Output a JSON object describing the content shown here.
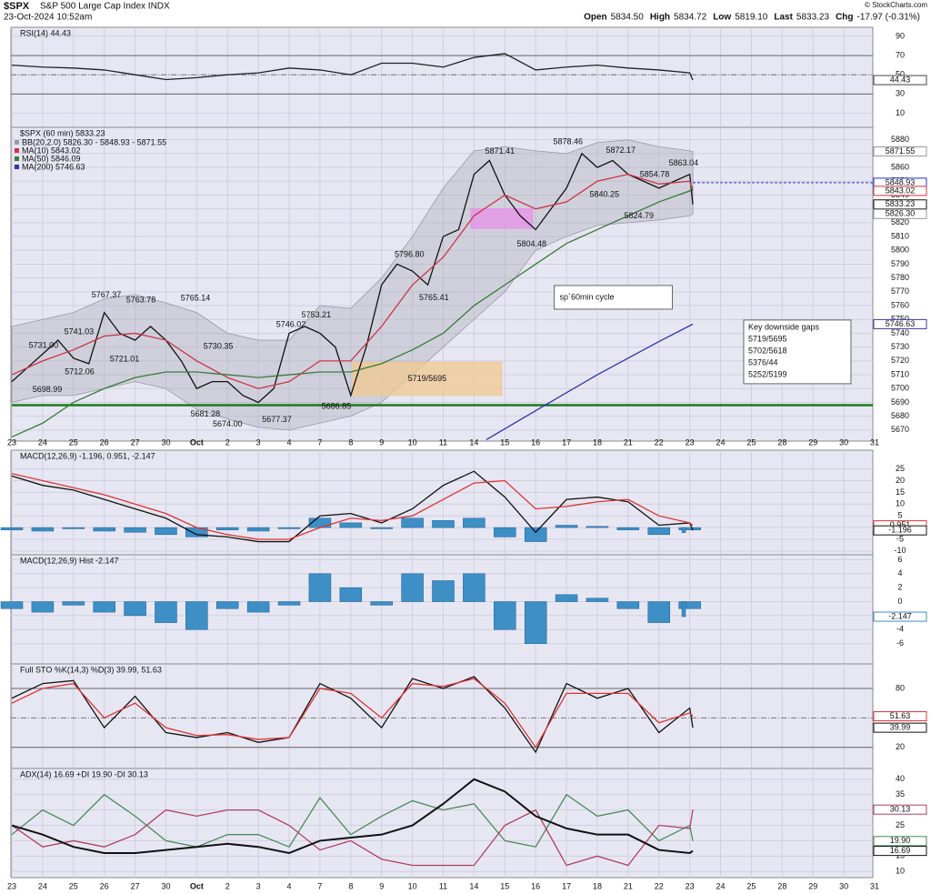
{
  "header": {
    "symbol": "$SPX",
    "name": "S&P 500 Large Cap Index INDX",
    "date": "23-Oct-2024 10:52am",
    "credit": "© StockCharts.com",
    "quote": [
      {
        "label": "Open",
        "value": "5834.50"
      },
      {
        "label": "High",
        "value": "5834.72"
      },
      {
        "label": "Low",
        "value": "5819.10"
      },
      {
        "label": "Last",
        "value": "5833.23"
      },
      {
        "label": "Chg",
        "value": "-17.97 (-0.31%)"
      }
    ]
  },
  "date_axis": {
    "labels": [
      "23",
      "24",
      "25",
      "26",
      "27",
      "30",
      "Oct",
      "2",
      "3",
      "4",
      "7",
      "8",
      "9",
      "10",
      "11",
      "14",
      "15",
      "16",
      "17",
      "18",
      "21",
      "22",
      "23",
      "24",
      "25",
      "28",
      "29",
      "30",
      "31"
    ]
  },
  "chart_data": [
    {
      "type": "line",
      "title": "RSI(14) 44.43",
      "ylim": [
        -4.7,
        99.4
      ],
      "yticks": [
        90,
        70,
        50,
        30,
        10
      ],
      "ref_lines": [
        70,
        30
      ],
      "dashed_lines": [
        50
      ],
      "x": [
        0,
        1,
        2,
        3,
        4,
        5,
        6,
        7,
        8,
        9,
        10,
        11,
        12,
        13,
        14,
        15,
        16,
        17,
        18,
        19,
        20,
        21,
        22,
        22.1
      ],
      "series": [
        {
          "color": "#222222",
          "values": [
            60,
            58,
            57,
            55,
            50,
            45,
            47,
            50,
            52,
            57,
            55,
            50,
            62,
            62,
            58,
            68,
            72,
            55,
            58,
            60,
            57,
            55,
            52,
            44.43
          ]
        }
      ],
      "last_labels": [
        {
          "value": 44.43,
          "color": "#444444"
        }
      ]
    },
    {
      "type": "line",
      "title": "$SPX (60 min) 5833.23",
      "ylim": [
        5662,
        5889
      ],
      "yticks": [
        5880,
        5870,
        5860,
        5850,
        5840,
        5830,
        5820,
        5810,
        5800,
        5790,
        5780,
        5770,
        5760,
        5750,
        5740,
        5730,
        5720,
        5710,
        5700,
        5690,
        5680,
        5670
      ],
      "x": [
        0,
        0.5,
        1,
        1.5,
        2,
        2.5,
        3,
        3.5,
        4,
        4.5,
        5,
        5.5,
        6,
        6.5,
        7,
        7.5,
        8,
        8.5,
        9,
        9.5,
        10,
        10.5,
        11,
        11.5,
        12,
        12.5,
        13,
        13.5,
        14,
        14.5,
        15,
        15.5,
        16,
        16.5,
        17,
        17.5,
        18,
        18.5,
        19,
        19.5,
        20,
        20.5,
        21,
        21.5,
        22,
        22.1
      ],
      "bands": {
        "name": "BB(20,2.0) 5826.30 - 5848.93 - 5871.55",
        "color": "#9a9aa8",
        "x": [
          0,
          1,
          2,
          3,
          4,
          5,
          6,
          7,
          8,
          9,
          10,
          11,
          12,
          13,
          14,
          15,
          16,
          17,
          18,
          19,
          20,
          21,
          22,
          22.1
        ],
        "upper": [
          5745,
          5750,
          5755,
          5765,
          5768,
          5762,
          5755,
          5740,
          5735,
          5735,
          5760,
          5758,
          5780,
          5810,
          5845,
          5872,
          5875,
          5872,
          5870,
          5878,
          5880,
          5875,
          5872,
          5871.55
        ],
        "lower": [
          5690,
          5695,
          5695,
          5700,
          5705,
          5700,
          5685,
          5678,
          5672,
          5670,
          5675,
          5680,
          5690,
          5710,
          5730,
          5750,
          5770,
          5800,
          5810,
          5818,
          5820,
          5822,
          5825,
          5826.3
        ]
      },
      "series": [
        {
          "name": "$SPX (60 min) 5833.23",
          "color": "#111111",
          "values": [
            5705,
            5715,
            5725,
            5735,
            5722,
            5718,
            5755,
            5740,
            5735,
            5745,
            5735,
            5720,
            5700,
            5705,
            5705,
            5695,
            5690,
            5700,
            5740,
            5745,
            5740,
            5730,
            5695,
            5730,
            5775,
            5790,
            5785,
            5775,
            5810,
            5815,
            5855,
            5865,
            5840,
            5825,
            5815,
            5830,
            5845,
            5870,
            5860,
            5865,
            5855,
            5850,
            5845,
            5850,
            5855,
            5833.23
          ]
        },
        {
          "name": "MA(10) 5843.02",
          "color": "#cc3344",
          "x": [
            0,
            1,
            2,
            3,
            4,
            5,
            6,
            7,
            8,
            9,
            10,
            11,
            12,
            13,
            14,
            15,
            16,
            17,
            18,
            19,
            20,
            21,
            22,
            22.1
          ],
          "values": [
            5710,
            5720,
            5728,
            5738,
            5740,
            5735,
            5720,
            5708,
            5700,
            5705,
            5720,
            5720,
            5745,
            5775,
            5795,
            5825,
            5840,
            5830,
            5835,
            5850,
            5855,
            5848,
            5850,
            5843.02
          ]
        },
        {
          "name": "MA(50) 5846.09",
          "color": "#3a7a3a",
          "x": [
            0,
            1,
            2,
            3,
            4,
            5,
            6,
            7,
            8,
            9,
            10,
            11,
            12,
            13,
            14,
            15,
            16,
            17,
            18,
            19,
            20,
            21,
            22,
            22.1
          ],
          "values": [
            5665,
            5675,
            5690,
            5700,
            5708,
            5712,
            5712,
            5710,
            5708,
            5710,
            5712,
            5712,
            5718,
            5728,
            5740,
            5760,
            5775,
            5790,
            5805,
            5815,
            5825,
            5835,
            5843,
            5846.09
          ]
        },
        {
          "name": "MA(200) 5746.63",
          "color": "#3333aa",
          "x": [
            15.4,
            17,
            19,
            21,
            22.1
          ],
          "values": [
            5663,
            5684,
            5710,
            5734,
            5746.63
          ]
        }
      ],
      "annotations": [
        {
          "x": 1.03,
          "value": 5731,
          "label": "5731.00"
        },
        {
          "x": 2.18,
          "value": 5741.03
        },
        {
          "x": 2.2,
          "value": 5712.06
        },
        {
          "x": 1.15,
          "value": 5698.99
        },
        {
          "x": 3.07,
          "value": 5767.37
        },
        {
          "x": 3.66,
          "value": 5721.01
        },
        {
          "x": 4.19,
          "value": 5763.78
        },
        {
          "x": 5.96,
          "value": 5765.14
        },
        {
          "x": 6.7,
          "value": 5730.35
        },
        {
          "x": 6.28,
          "value": 5681.28
        },
        {
          "x": 7,
          "value": 5674,
          "label": "5674.00"
        },
        {
          "x": 8.6,
          "value": 5677.37
        },
        {
          "x": 9.06,
          "value": 5746.02
        },
        {
          "x": 9.88,
          "value": 5753.21
        },
        {
          "x": 10.53,
          "value": 5686.85
        },
        {
          "x": 12.9,
          "value": 5796.8,
          "label": "5796.80"
        },
        {
          "x": 13.7,
          "value": 5765.41
        },
        {
          "x": 15.84,
          "value": 5871.41
        },
        {
          "x": 16.87,
          "value": 5804.48
        },
        {
          "x": 18.05,
          "value": 5878.46
        },
        {
          "x": 19.23,
          "value": 5840.25
        },
        {
          "x": 19.76,
          "value": 5872.17
        },
        {
          "x": 20.86,
          "value": 5854.78
        },
        {
          "x": 20.35,
          "value": 5824.79
        },
        {
          "x": 21.8,
          "value": 5863.04
        }
      ],
      "gaps": [
        {
          "label": "5719/5695",
          "top": 5719,
          "bottom": 5695,
          "x": [
            11.06,
            15.9
          ],
          "color": "#f0c890"
        },
        {
          "top": 5830,
          "bottom": 5816,
          "x": [
            14.9,
            16.9
          ],
          "color": "#e890e8"
        }
      ],
      "hlines": [
        {
          "value": 5688,
          "color": "#1a7a1a",
          "from": 0
        },
        {
          "value": 5848.93,
          "color": "#2233cc",
          "from": 22.1
        }
      ],
      "last_labels": [
        {
          "value": 5871.55,
          "color": "#999999"
        },
        {
          "value": 5848.93,
          "color": "#2233cc"
        },
        {
          "value": 5843.02,
          "color": "#cc3344"
        },
        {
          "value": 5833.23,
          "color": "#111111"
        },
        {
          "value": 5826.3,
          "label": "5826.30",
          "color": "#999999"
        },
        {
          "value": 5746.63,
          "color": "#3333aa"
        }
      ],
      "notes": [
        {
          "text": "sp`60min cycle",
          "x": 17.6,
          "value": 5766
        },
        {
          "lines": [
            "Key downside gaps",
            "5719/5695",
            "5702/5618",
            "5376/44",
            "5252/5199"
          ],
          "x": 23.75,
          "value": 5743
        }
      ]
    },
    {
      "type": "line",
      "title": "MACD(12,26,9) -1.196, 0.951, -2.147",
      "ylim": [
        -11.6,
        33
      ],
      "yticks": [
        25,
        20,
        15,
        10,
        5,
        0,
        -5,
        -10
      ],
      "x": [
        0,
        1,
        2,
        3,
        4,
        5,
        6,
        7,
        8,
        9,
        10,
        11,
        12,
        13,
        14,
        15,
        16,
        17,
        18,
        19,
        20,
        21,
        22,
        22.1
      ],
      "series": [
        {
          "type": "bar",
          "color": "#3d8fc6",
          "values": [
            -1,
            -1.5,
            -0.5,
            -1.5,
            -2,
            -3,
            -4,
            -1,
            -1.5,
            -0.5,
            4,
            2,
            -0.5,
            4,
            3,
            4,
            -4,
            -6,
            1,
            0.5,
            -1,
            -3,
            -1,
            -2.147
          ]
        },
        {
          "color": "#111111",
          "values": [
            22,
            18,
            16,
            12,
            8,
            4,
            -3,
            -4,
            -6,
            -6,
            5,
            6,
            2,
            8,
            18,
            24,
            13,
            -2,
            12,
            13,
            11,
            1,
            2,
            -1.196
          ]
        },
        {
          "color": "#dd3333",
          "values": [
            23,
            20,
            17,
            14,
            10,
            6,
            0,
            -3,
            -5,
            -5,
            0,
            4,
            3,
            5,
            12,
            19,
            20,
            8,
            9,
            11,
            12,
            5,
            2,
            0.951
          ]
        }
      ],
      "last_labels": [
        {
          "value": 0.951,
          "color": "#dd3333"
        },
        {
          "value": -1.196,
          "color": "#111111"
        }
      ]
    },
    {
      "type": "bar",
      "title": "MACD(12,26,9) Hist -2.147",
      "ylim": [
        -8.9,
        6.7
      ],
      "yticks": [
        6,
        4,
        2,
        0,
        -2,
        -4,
        -6
      ],
      "x": [
        0,
        1,
        2,
        3,
        4,
        5,
        6,
        7,
        8,
        9,
        10,
        11,
        12,
        13,
        14,
        15,
        16,
        17,
        18,
        19,
        20,
        21,
        22,
        22.1
      ],
      "series": [
        {
          "type": "bar",
          "color": "#3d8fc6",
          "values": [
            -1,
            -1.5,
            -0.5,
            -1.5,
            -2,
            -3,
            -4,
            -1,
            -1.5,
            -0.5,
            4,
            2,
            -0.5,
            4,
            3,
            4,
            -4,
            -6,
            1,
            0.5,
            -1,
            -3,
            -1,
            -2.147
          ]
        }
      ],
      "last_labels": [
        {
          "value": -2.147,
          "color": "#3d8fc6"
        }
      ]
    },
    {
      "type": "line",
      "title": "Full STO %K(14,3) %D(3) 39.99, 51.63",
      "ylim": [
        -1.6,
        105
      ],
      "yticks": [
        80,
        20
      ],
      "ref_lines": [
        80,
        20
      ],
      "dashed_lines": [
        50
      ],
      "x": [
        0,
        1,
        2,
        3,
        4,
        5,
        6,
        7,
        8,
        9,
        10,
        11,
        12,
        13,
        14,
        15,
        16,
        17,
        18,
        19,
        20,
        21,
        22,
        22.1
      ],
      "series": [
        {
          "color": "#111111",
          "values": [
            70,
            85,
            88,
            40,
            72,
            35,
            30,
            35,
            25,
            30,
            85,
            70,
            40,
            90,
            80,
            92,
            60,
            15,
            85,
            70,
            80,
            35,
            60,
            39.99
          ]
        },
        {
          "color": "#dd3333",
          "values": [
            65,
            80,
            85,
            50,
            65,
            40,
            32,
            33,
            28,
            30,
            80,
            75,
            50,
            85,
            82,
            90,
            65,
            20,
            75,
            75,
            75,
            45,
            55,
            51.63
          ]
        }
      ],
      "last_labels": [
        {
          "value": 51.63,
          "color": "#dd3333"
        },
        {
          "value": 39.99,
          "color": "#111111"
        }
      ]
    },
    {
      "type": "line",
      "title": "ADX(14) 16.69 +DI 19.90 -DI 30.13",
      "ylim": [
        8,
        43.5
      ],
      "yticks": [
        40,
        35,
        30,
        25,
        20,
        15,
        10
      ],
      "x": [
        0,
        1,
        2,
        3,
        4,
        5,
        6,
        7,
        8,
        9,
        10,
        11,
        12,
        13,
        14,
        15,
        16,
        17,
        18,
        19,
        20,
        21,
        22,
        22.1
      ],
      "series": [
        {
          "color": "#4a8a5a",
          "values": [
            22,
            30,
            25,
            35,
            28,
            20,
            18,
            22,
            22,
            18,
            34,
            22,
            28,
            33,
            30,
            32,
            20,
            18,
            35,
            28,
            30,
            20,
            25,
            19.9
          ]
        },
        {
          "color": "#b04060",
          "values": [
            25,
            18,
            20,
            18,
            22,
            30,
            28,
            30,
            30,
            25,
            17,
            20,
            14,
            12,
            12,
            12,
            25,
            30,
            12,
            15,
            12,
            25,
            24,
            30.13
          ]
        },
        {
          "color": "#111111",
          "width": 2,
          "values": [
            25,
            22,
            18,
            16,
            16,
            17,
            18,
            19,
            18,
            16,
            20,
            21,
            22,
            25,
            32,
            40,
            36,
            28,
            24,
            22,
            22,
            17,
            16,
            16.69
          ]
        }
      ],
      "last_labels": [
        {
          "value": 30.13,
          "color": "#b04060"
        },
        {
          "value": 19.9,
          "label": "19.90",
          "color": "#4a8a5a"
        },
        {
          "value": 16.69,
          "color": "#111111"
        }
      ]
    }
  ]
}
